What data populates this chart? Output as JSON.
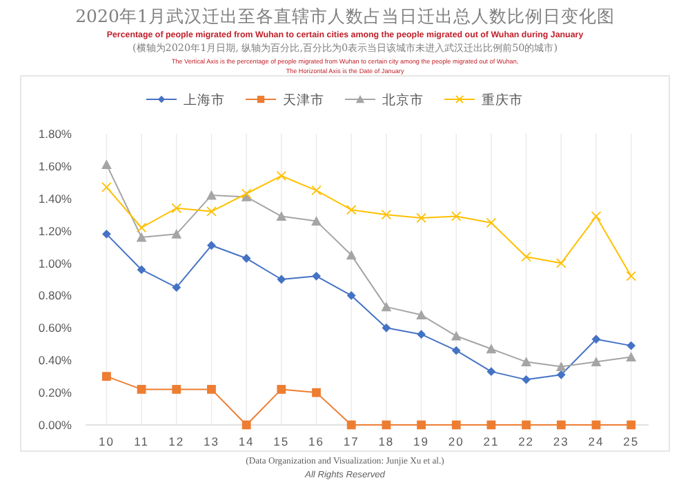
{
  "chart_data": {
    "type": "line",
    "title": "2020年1月武汉迁出至各直辖市人数占当日迁出总人数比例日变化图",
    "subtitle": "Percentage of people migrated from Wuhan to certain cities  among the people migrated out of Wuhan during January",
    "annotations": [
      "(横轴为2020年1月日期, 纵轴为百分比,百分比为0表示当日该城市未进入武汉迁出比例前50的城市)",
      "The Vertical Axis is the percentage of people migrated from Wuhan to certain city  among the people migrated out of Wuhan,",
      "The Horizontal Axis is the Date of January",
      "(Data Organization and Visualization: Junjie Xu et al.)",
      "All Rights Reserved"
    ],
    "x": [
      10,
      11,
      12,
      13,
      14,
      15,
      16,
      17,
      18,
      19,
      20,
      21,
      22,
      23,
      24,
      25
    ],
    "series": [
      {
        "name": "上海市",
        "color": "#4472c4",
        "marker": "diamond",
        "values": [
          1.18,
          0.96,
          0.85,
          1.11,
          1.03,
          0.9,
          0.92,
          0.8,
          0.6,
          0.56,
          0.46,
          0.33,
          0.28,
          0.31,
          0.53,
          0.49
        ]
      },
      {
        "name": "天津市",
        "color": "#ed7d31",
        "marker": "square",
        "values": [
          0.3,
          0.22,
          0.22,
          0.22,
          0,
          0.22,
          0.2,
          0,
          0,
          0,
          0,
          0,
          0,
          0,
          0,
          0
        ]
      },
      {
        "name": "北京市",
        "color": "#a5a5a5",
        "marker": "triangle",
        "values": [
          1.61,
          1.16,
          1.18,
          1.42,
          1.41,
          1.29,
          1.26,
          1.05,
          0.73,
          0.68,
          0.55,
          0.47,
          0.39,
          0.36,
          0.39,
          0.42
        ]
      },
      {
        "name": "重庆市",
        "color": "#ffc000",
        "marker": "cross",
        "values": [
          1.47,
          1.22,
          1.34,
          1.32,
          1.43,
          1.54,
          1.45,
          1.33,
          1.3,
          1.28,
          1.29,
          1.25,
          1.04,
          1.0,
          1.29,
          0.92
        ]
      }
    ],
    "xlim": [
      9.4,
      25.5
    ],
    "xticks": [
      10,
      11,
      12,
      13,
      14,
      15,
      16,
      17,
      18,
      19,
      20,
      21,
      22,
      23,
      24,
      25
    ],
    "ylim": [
      0,
      1.8
    ],
    "yticks": [
      {
        "value": 0,
        "label": "0.00%"
      },
      {
        "value": 0.2,
        "label": "0.20%"
      },
      {
        "value": 0.4,
        "label": "0.40%"
      },
      {
        "value": 0.6,
        "label": "0.60%"
      },
      {
        "value": 0.8,
        "label": "0.80%"
      },
      {
        "value": 1.0,
        "label": "1.00%"
      },
      {
        "value": 1.2,
        "label": "1.20%"
      },
      {
        "value": 1.4,
        "label": "1.40%"
      },
      {
        "value": 1.6,
        "label": "1.60%"
      },
      {
        "value": 1.8,
        "label": "1.80%"
      }
    ],
    "grid": "x",
    "legend": "top"
  }
}
